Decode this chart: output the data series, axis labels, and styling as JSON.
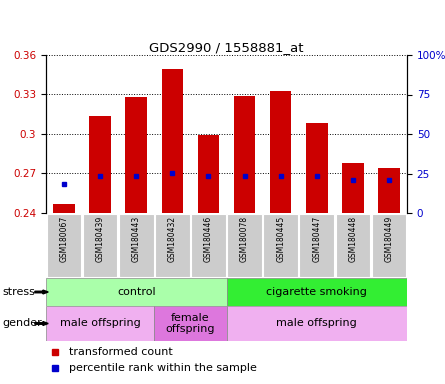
{
  "title": "GDS2990 / 1558881_at",
  "samples": [
    "GSM180067",
    "GSM180439",
    "GSM180443",
    "GSM180432",
    "GSM180446",
    "GSM180078",
    "GSM180445",
    "GSM180447",
    "GSM180448",
    "GSM180449"
  ],
  "red_values": [
    0.247,
    0.314,
    0.328,
    0.349,
    0.299,
    0.329,
    0.333,
    0.308,
    0.278,
    0.274
  ],
  "blue_values": [
    0.262,
    0.268,
    0.268,
    0.27,
    0.268,
    0.268,
    0.268,
    0.268,
    0.265,
    0.265
  ],
  "ymin": 0.24,
  "ymax": 0.36,
  "yticks": [
    0.24,
    0.27,
    0.3,
    0.33,
    0.36
  ],
  "right_yticks": [
    0,
    25,
    50,
    75,
    100
  ],
  "right_yticklabels": [
    "0",
    "25",
    "50",
    "75",
    "100%"
  ],
  "stress_groups": [
    {
      "label": "control",
      "start": 0,
      "end": 5,
      "color": "#aaffaa"
    },
    {
      "label": "cigarette smoking",
      "start": 5,
      "end": 10,
      "color": "#33ee33"
    }
  ],
  "gender_groups": [
    {
      "label": "male offspring",
      "start": 0,
      "end": 3,
      "color": "#f0b0f0"
    },
    {
      "label": "female\noffspring",
      "start": 3,
      "end": 5,
      "color": "#dd77dd"
    },
    {
      "label": "male offspring",
      "start": 5,
      "end": 10,
      "color": "#f0b0f0"
    }
  ],
  "stress_label": "stress",
  "gender_label": "gender",
  "red_color": "#cc0000",
  "blue_color": "#0000cc",
  "bar_width": 0.6,
  "tick_bg_color": "#cccccc"
}
